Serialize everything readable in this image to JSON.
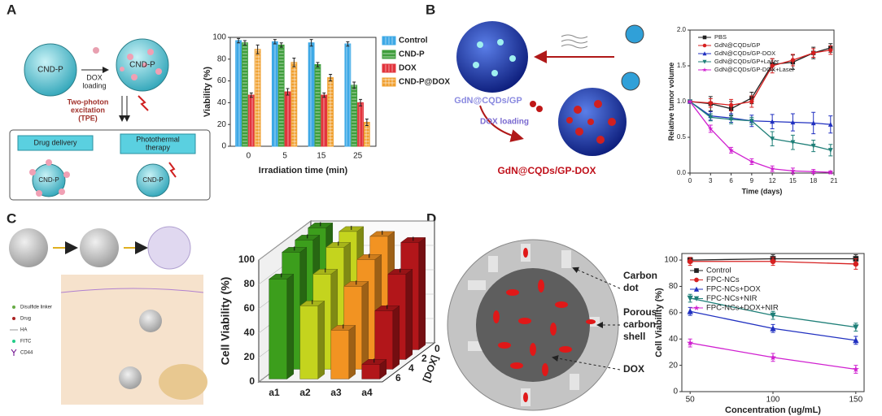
{
  "panel_labels": [
    "A",
    "B",
    "C",
    "D"
  ],
  "diagrams": {
    "a": {
      "particles": [
        "CND-P",
        "CND-P",
        "CND-P",
        "CND-P"
      ],
      "loading": [
        "DOX",
        "loading"
      ],
      "excitation": [
        "Two-photon",
        "excitation",
        "(TPE)"
      ],
      "drug_delivery": "Drug delivery",
      "photothermal": [
        "Photothermal",
        "therapy"
      ]
    },
    "b": {
      "carrier": "GdN@CQDs/GP",
      "loading": "DOX loading",
      "product": "GdN@CQDs/GP-DOX"
    },
    "c": {
      "legend": [
        "Disulfide linker",
        "Drug",
        "HA",
        "FITC",
        "CD44"
      ]
    },
    "d": {
      "carbon_dot": [
        "Carbon",
        "dot"
      ],
      "shell": [
        "Porous",
        "carbon",
        "shell"
      ],
      "dox": "DOX"
    }
  },
  "chart_data": [
    {
      "type": "bar",
      "categories": [
        "0",
        "5",
        "15",
        "25"
      ],
      "x_label": "Irradiation time (min)",
      "y_label": "Viability (%)",
      "ylim": [
        0,
        100
      ],
      "yticks": [
        0,
        20,
        40,
        60,
        80,
        100
      ],
      "legend": "right",
      "series": [
        {
          "name": "Control",
          "color": "#3ea9e6",
          "hatch": "vertical",
          "values": [
            97,
            96,
            95,
            94
          ],
          "errors": [
            2,
            2,
            3,
            2
          ]
        },
        {
          "name": "CND-P",
          "color": "#3f9e3c",
          "hatch": "horizontal",
          "values": [
            95,
            93,
            75,
            56
          ],
          "errors": [
            2,
            2,
            2,
            3
          ]
        },
        {
          "name": "DOX",
          "color": "#e2343d",
          "hatch": "vertical",
          "values": [
            47,
            50,
            47,
            40
          ],
          "errors": [
            2,
            3,
            2,
            3
          ]
        },
        {
          "name": "CND-P@DOX",
          "color": "#f0a030",
          "hatch": "cross",
          "values": [
            89,
            77,
            63,
            22
          ],
          "errors": [
            4,
            4,
            3,
            3
          ]
        }
      ]
    },
    {
      "type": "line",
      "x": [
        0,
        3,
        6,
        9,
        12,
        15,
        18,
        20.5
      ],
      "x_label": "Time (days)",
      "y_label": "Relative tumor volume",
      "xlim": [
        0,
        21
      ],
      "xticks": [
        0,
        3,
        6,
        9,
        12,
        15,
        18,
        21
      ],
      "ylim": [
        0,
        2
      ],
      "yticks": [
        {
          "value": 0,
          "label": "0.0"
        },
        0.5,
        {
          "value": 1,
          "label": "1.0"
        },
        1.5,
        {
          "value": 2,
          "label": "2.0"
        }
      ],
      "legend": "upper left",
      "series": [
        {
          "name": "PBS",
          "color": "#222222",
          "marker": "square",
          "values": [
            1.0,
            0.97,
            0.9,
            1.05,
            1.52,
            1.55,
            1.68,
            1.75
          ],
          "errors": [
            0,
            0.1,
            0.1,
            0.08,
            0.08,
            0.1,
            0.08,
            0.06
          ]
        },
        {
          "name": "GdN@CQDs/GP",
          "color": "#d62020",
          "marker": "circle",
          "values": [
            1.0,
            0.98,
            0.95,
            1.0,
            1.5,
            1.58,
            1.68,
            1.72
          ],
          "errors": [
            0,
            0.06,
            0.08,
            0.08,
            0.1,
            0.08,
            0.06,
            0.06
          ]
        },
        {
          "name": "GdN@CQDs/GP-DOX",
          "color": "#2030c0",
          "marker": "triangle",
          "values": [
            1.0,
            0.8,
            0.77,
            0.73,
            0.72,
            0.71,
            0.7,
            0.68
          ],
          "errors": [
            0,
            0.06,
            0.06,
            0.08,
            0.1,
            0.12,
            0.15,
            0.12
          ]
        },
        {
          "name": "GdN@CQDs/GP+Laser",
          "color": "#1f7f78",
          "marker": "triangle-down",
          "values": [
            1.0,
            0.78,
            0.75,
            0.73,
            0.48,
            0.43,
            0.38,
            0.32
          ],
          "errors": [
            0,
            0.05,
            0.06,
            0.05,
            0.1,
            0.1,
            0.08,
            0.08
          ]
        },
        {
          "name": "GdN@CQDs/GP-DOX+Laser",
          "color": "#d020d0",
          "marker": "star",
          "values": [
            1.0,
            0.62,
            0.32,
            0.16,
            0.06,
            0.03,
            0.02,
            0.01
          ],
          "errors": [
            0,
            0.05,
            0.04,
            0.04,
            0.04,
            0.04,
            0.03,
            0.02
          ]
        }
      ]
    },
    {
      "type": "bar3d",
      "categories": [
        "a1",
        "a2",
        "a3",
        "a4"
      ],
      "y_label": "Cell Viability (%)",
      "depth_label": "[DOX]",
      "depth_ticks": [
        0,
        2,
        4,
        6
      ],
      "ylim": [
        0,
        100
      ],
      "yticks": [
        0,
        20,
        40,
        60,
        80,
        100
      ],
      "colors": [
        "#3c9e1c",
        "#c4d41e",
        "#f29322",
        "#b2161a"
      ],
      "values": [
        [
          100,
          98,
          96,
          82
        ],
        [
          97,
          92,
          78,
          60
        ],
        [
          93,
          82,
          68,
          40
        ],
        [
          88,
          70,
          48,
          12
        ]
      ]
    },
    {
      "type": "line",
      "x": [
        50,
        100,
        150
      ],
      "x_label": "Concentration (ug/mL)",
      "y_label": "Cell Viability (%)",
      "xlim": [
        45,
        155
      ],
      "xticks": [
        50,
        100,
        150
      ],
      "ylim": [
        0,
        105
      ],
      "yticks": [
        0,
        20,
        40,
        60,
        80,
        100
      ],
      "legend": "upper left",
      "series": [
        {
          "name": "Control",
          "color": "#222222",
          "marker": "square",
          "values": [
            100,
            101,
            101
          ],
          "errors": [
            2,
            3,
            3
          ]
        },
        {
          "name": "FPC-NCs",
          "color": "#d62020",
          "marker": "circle",
          "values": [
            99,
            99,
            97
          ],
          "errors": [
            3,
            3,
            4
          ]
        },
        {
          "name": "FPC-NCs+DOX",
          "color": "#2030c0",
          "marker": "triangle",
          "values": [
            61,
            48,
            39
          ],
          "errors": [
            3,
            3,
            3
          ]
        },
        {
          "name": "FPC-NCs+NIR",
          "color": "#1f7f78",
          "marker": "triangle-down",
          "values": [
            71,
            58,
            49
          ],
          "errors": [
            3,
            3,
            3
          ]
        },
        {
          "name": "FPC-NCs+DOX+NIR",
          "color": "#d020d0",
          "marker": "star",
          "values": [
            37,
            26,
            17
          ],
          "errors": [
            3,
            3,
            3
          ]
        }
      ]
    }
  ]
}
